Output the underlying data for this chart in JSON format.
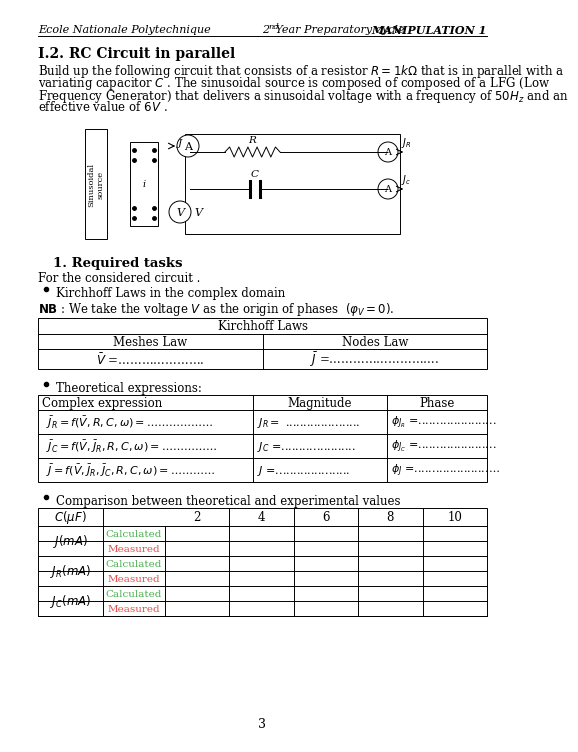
{
  "header_left": "Ecole Nationale Polytechnique",
  "header_center_num": "2",
  "header_center_sup": "nd",
  "header_center_rest": " Year Preparatory cycle",
  "header_right": "MANIPULATION 1",
  "section_title": "I.2. RC Circuit in parallel",
  "body_lines": [
    "Build up the following circuit that consists of a resistor $R=1k\\Omega$ that is in parallel with a",
    "variating capacitor $C$ . The sinusoidal source is composed of composed of a LFG (Low",
    "Frequency Generator) that delivers a sinusoidal voltage with a frequency of $50H_z$ and an",
    "effective value of $6V$ ."
  ],
  "required_title": "1. Required tasks",
  "required_sub": "For the considered circuit .",
  "bullet1": "Kirchhoff Laws in the complex domain",
  "nb_line": "We take the voltage $V$ as the origin of phases  $(\\varphi_V=0)$.",
  "kirchhoff_title": "Kirchhoff Laws",
  "meshes_law": "Meshes Law",
  "nodes_law": "Nodes Law",
  "mesh_eq": "$\\bar{V}$ =………………….",
  "node_eq": "$\\bar{J}$ =……………………….",
  "bullet2": "Theoretical expressions:",
  "col1": "Complex expression",
  "col2": "Magnitude",
  "col3": "Phase",
  "row1_expr": "$\\bar{J}_R = f(\\bar{V},R,C,\\omega)=$………………",
  "row1_mag": "$J_R =$ .....................",
  "row1_phase": "$\\phi_{J_R}$ =......................",
  "row2_expr": "$\\bar{J}_C = f(\\bar{V},\\bar{J}_R,R,C,\\omega)=$……………",
  "row2_mag": "$J_C$ =.....................",
  "row2_phase": "$\\phi_{J_C}$ =......................",
  "row3_expr": "$\\bar{J} = f(\\bar{V},\\bar{J}_R,\\bar{J}_C,R,C,\\omega)=$…………",
  "row3_mag": "$J$ =.....................",
  "row3_phase": "$\\phi_J$ =.....................…",
  "bullet3": "Comparison between theoretical and experimental values",
  "table2_c_label": "$C(\\mu F)$",
  "table2_cols": [
    "2",
    "4",
    "6",
    "8",
    "10"
  ],
  "table2_row1_label": "$J(mA)$",
  "table2_row2_label": "$J_R(mA)$",
  "table2_row3_label": "$J_C(mA)$",
  "calc_label": "Calculated",
  "meas_label": "Measured",
  "calc_color": "#4CAF50",
  "meas_color": "#e05050",
  "page_num": "3",
  "bg_color": "#ffffff"
}
